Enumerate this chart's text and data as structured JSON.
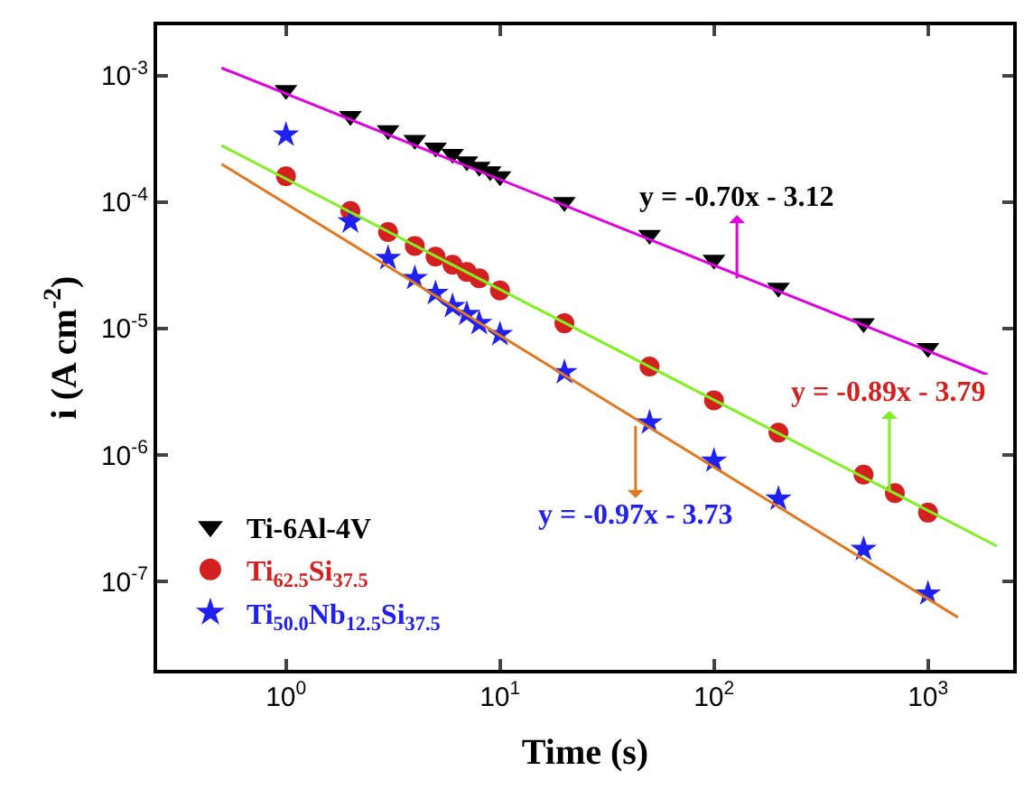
{
  "chart_data": {
    "type": "scatter",
    "xlabel": "Time (s)",
    "ylabel": "i (A cm$^{-2}$)",
    "log": "xy",
    "xlim": [
      0.25,
      2500
    ],
    "ylim": [
      2e-08,
      0.0025
    ],
    "xticks": [
      {
        "value": 1,
        "label": "10$^{0}$"
      },
      {
        "value": 10,
        "label": "10$^{1}$"
      },
      {
        "value": 100,
        "label": "10$^{2}$"
      },
      {
        "value": 1000,
        "label": "10$^{3}$"
      }
    ],
    "yticks": [
      {
        "value": 1e-07,
        "label": "10$^{-7}$"
      },
      {
        "value": 1e-06,
        "label": "10$^{-6}$"
      },
      {
        "value": 1e-05,
        "label": "10$^{-5}$"
      },
      {
        "value": 0.0001,
        "label": "10$^{-4}$"
      },
      {
        "value": 0.001,
        "label": "10$^{-3}$"
      }
    ],
    "legend": "bottom left",
    "series": [
      {
        "name": "Ti-6Al-4V",
        "color": "#000000",
        "marker": "triangle",
        "x": [
          1,
          2,
          3,
          4,
          5,
          6,
          7,
          8,
          9,
          10,
          20,
          50,
          100,
          200,
          500,
          1000
        ],
        "values": [
          0.00077,
          0.00048,
          0.00037,
          0.00031,
          0.00027,
          0.00024,
          0.00021,
          0.00019,
          0.000175,
          0.00016,
          0.0001,
          5.5e-05,
          3.5e-05,
          2.1e-05,
          1.1e-05,
          7e-06
        ]
      },
      {
        "name": "Ti$_{62.5}$Si$_{37.5}$",
        "color": "#d42020",
        "marker": "circle",
        "x": [
          1,
          2,
          3,
          4,
          5,
          6,
          7,
          8,
          10,
          20,
          50,
          100,
          200,
          500,
          700,
          1000
        ],
        "values": [
          0.00016,
          8.5e-05,
          5.8e-05,
          4.5e-05,
          3.7e-05,
          3.2e-05,
          2.8e-05,
          2.5e-05,
          2e-05,
          1.1e-05,
          5e-06,
          2.7e-06,
          1.5e-06,
          7e-07,
          5e-07,
          3.5e-07
        ]
      },
      {
        "name": "Ti$_{50.0}$Nb$_{12.5}$Si$_{37.5}$",
        "color": "#2020f0",
        "marker": "star",
        "x": [
          1,
          2,
          3,
          4,
          5,
          6,
          7,
          8,
          10,
          20,
          50,
          100,
          200,
          500,
          1000
        ],
        "values": [
          0.00034,
          7e-05,
          3.6e-05,
          2.5e-05,
          1.9e-05,
          1.5e-05,
          1.3e-05,
          1.1e-05,
          9e-06,
          4.5e-06,
          1.8e-06,
          9e-07,
          4.5e-07,
          1.8e-07,
          8e-08
        ]
      },
      {
        "type": "line",
        "color": "#e000e0",
        "marker": "none",
        "x": [
          0.5,
          1900
        ],
        "values": [
          0.00115,
          4.3e-06
        ]
      },
      {
        "type": "line",
        "color": "#80f020",
        "marker": "none",
        "x": [
          0.5,
          2100
        ],
        "values": [
          0.00028,
          1.9e-07
        ]
      },
      {
        "type": "line",
        "color": "#e07820",
        "marker": "none",
        "x": [
          0.5,
          1380
        ],
        "values": [
          0.0002,
          5.2e-08
        ]
      }
    ],
    "annotations": [
      {
        "text": "y = -0.70x - 3.12",
        "x": 128,
        "y": 2.5e-05
      },
      {
        "text": "y = -0.89x - 3.79",
        "x": 660,
        "y": 5.1e-07
      },
      {
        "text": "y = -0.97x - 3.73",
        "x": 43,
        "y": 1.7e-06
      }
    ]
  }
}
